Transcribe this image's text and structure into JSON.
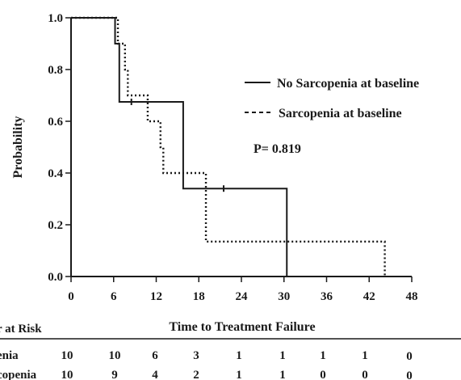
{
  "chart_data": {
    "type": "line",
    "subtype": "kaplan-meier-step",
    "xlabel": "Time to Treatment Failure",
    "ylabel": "Probability",
    "xlim": [
      0,
      48
    ],
    "ylim": [
      0,
      1.0
    ],
    "xticks": [
      0,
      6,
      12,
      18,
      24,
      30,
      36,
      42,
      48
    ],
    "yticks": [
      "0.0",
      "0.2",
      "0.4",
      "0.6",
      "0.8",
      "1.0"
    ],
    "annotation": "P= 0.819",
    "series": [
      {
        "name": "No Sarcopenia at baseline",
        "style": "solid",
        "color": "#1a1a1a",
        "steps": [
          [
            0,
            1.0
          ],
          [
            6.2,
            0.9
          ],
          [
            6.8,
            0.675
          ],
          [
            15.8,
            0.34
          ],
          [
            30.4,
            0.0
          ]
        ],
        "censor": [
          [
            8.5,
            0.675
          ],
          [
            21.5,
            0.34
          ]
        ]
      },
      {
        "name": "Sarcopenia at baseline",
        "style": "dotted",
        "color": "#1a1a1a",
        "steps": [
          [
            0,
            1.0
          ],
          [
            6.6,
            0.9
          ],
          [
            7.6,
            0.8
          ],
          [
            8.0,
            0.7
          ],
          [
            10.8,
            0.6
          ],
          [
            12.6,
            0.5
          ],
          [
            13.0,
            0.4
          ],
          [
            19.0,
            0.135
          ],
          [
            44.2,
            0.0
          ]
        ],
        "censor": []
      }
    ],
    "legend_position": "top-right",
    "risk_table": {
      "title": "r at Risk",
      "times": [
        0,
        6,
        12,
        18,
        24,
        30,
        36,
        42,
        48
      ],
      "rows": [
        {
          "label": "enia",
          "values": [
            "10",
            "10",
            "6",
            "3",
            "1",
            "1",
            "1",
            "1",
            "0"
          ]
        },
        {
          "label": "copenia",
          "values": [
            "10",
            "9",
            "4",
            "2",
            "1",
            "1",
            "0",
            "0",
            "0"
          ]
        }
      ]
    }
  }
}
